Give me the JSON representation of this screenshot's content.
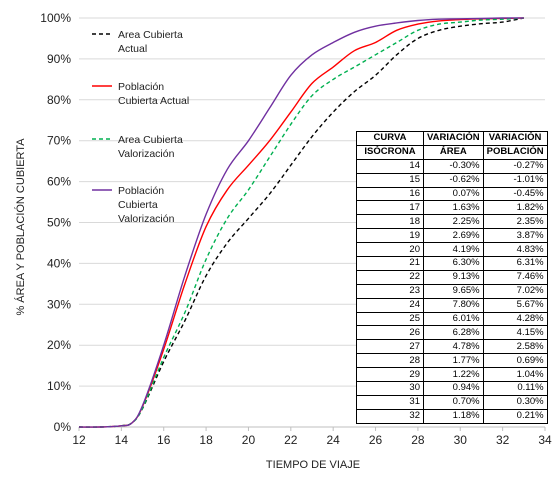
{
  "chart_data": {
    "type": "line",
    "xlabel": "TIEMPO DE VIAJE",
    "ylabel": "% ÁREA Y POBLACIÓN CUBIERTA",
    "xlim": [
      12,
      34
    ],
    "ylim": [
      0,
      100
    ],
    "x_ticks": [
      "12",
      "14",
      "16",
      "18",
      "20",
      "22",
      "24",
      "26",
      "28",
      "30",
      "32",
      "34"
    ],
    "y_ticks": [
      "0%",
      "10%",
      "20%",
      "30%",
      "40%",
      "50%",
      "60%",
      "70%",
      "80%",
      "90%",
      "100%"
    ],
    "grid": "horizontal",
    "legend_position": "top-left",
    "series": [
      {
        "name": "Area Cubierta Actual",
        "color": "#000000",
        "style": "dashed",
        "x": [
          12,
          13,
          14,
          14.5,
          15,
          16,
          17,
          18,
          19,
          20,
          21,
          22,
          23,
          24,
          25,
          26,
          27,
          28,
          29,
          30,
          31,
          32,
          33
        ],
        "y": [
          0,
          0,
          0.3,
          1,
          4.5,
          16,
          26,
          37,
          45,
          51,
          57,
          64,
          71,
          77,
          82,
          86,
          91,
          95,
          97,
          98,
          98.6,
          99,
          100
        ]
      },
      {
        "name": "Población Cubierta Actual",
        "color": "#ff0000",
        "style": "solid",
        "x": [
          12,
          13,
          14,
          14.5,
          15,
          16,
          17,
          18,
          19,
          20,
          21,
          22,
          23,
          24,
          25,
          26,
          27,
          28,
          29,
          30,
          31,
          32,
          33
        ],
        "y": [
          0,
          0,
          0.3,
          1,
          5,
          19,
          35,
          49,
          58,
          64,
          70,
          77,
          84,
          88,
          92,
          94,
          97,
          98.5,
          99.3,
          99.6,
          99.8,
          99.9,
          100
        ]
      },
      {
        "name": "Area Cubierta Valorización",
        "color": "#00b050",
        "style": "dashed",
        "x": [
          12,
          13,
          14,
          14.5,
          15,
          16,
          17,
          18,
          19,
          20,
          21,
          22,
          23,
          24,
          25,
          26,
          27,
          28,
          29,
          30,
          31,
          32,
          33
        ],
        "y": [
          0,
          0,
          0.3,
          1,
          4.6,
          17,
          28,
          41,
          51,
          58,
          66,
          74,
          81,
          85,
          88,
          91,
          94,
          97,
          98.5,
          99,
          99.5,
          99.7,
          100
        ]
      },
      {
        "name": "Población Cubierta Valorización",
        "color": "#7030a0",
        "style": "solid",
        "x": [
          12,
          13,
          14,
          14.5,
          15,
          16,
          17,
          18,
          19,
          20,
          21,
          22,
          23,
          24,
          25,
          26,
          27,
          28,
          29,
          30,
          31,
          32,
          33
        ],
        "y": [
          0,
          0,
          0.3,
          1,
          5.2,
          20,
          37,
          52,
          63,
          70,
          78,
          86,
          91,
          94,
          96.5,
          98,
          98.8,
          99.4,
          99.7,
          99.8,
          99.9,
          100,
          100
        ]
      }
    ],
    "table": {
      "headers": [
        [
          "CURVA",
          "VARIACIÓN",
          "VARIACIÓN"
        ],
        [
          "ISÓCRONA",
          "ÁREA",
          "POBLACIÓN"
        ]
      ],
      "rows": [
        [
          "14",
          "-0.30%",
          "-0.27%"
        ],
        [
          "15",
          "-0.62%",
          "-1.01%"
        ],
        [
          "16",
          "0.07%",
          "-0.45%"
        ],
        [
          "17",
          "1.63%",
          "1.82%"
        ],
        [
          "18",
          "2.25%",
          "2.35%"
        ],
        [
          "19",
          "2.69%",
          "3.87%"
        ],
        [
          "20",
          "4.19%",
          "4.83%"
        ],
        [
          "21",
          "6.30%",
          "6.31%"
        ],
        [
          "22",
          "9.13%",
          "7.46%"
        ],
        [
          "23",
          "9.65%",
          "7.02%"
        ],
        [
          "24",
          "7.80%",
          "5.67%"
        ],
        [
          "25",
          "6.01%",
          "4.28%"
        ],
        [
          "26",
          "6.28%",
          "4.15%"
        ],
        [
          "27",
          "4.78%",
          "2.58%"
        ],
        [
          "28",
          "1.77%",
          "0.69%"
        ],
        [
          "29",
          "1.22%",
          "1.04%"
        ],
        [
          "30",
          "0.94%",
          "0.11%"
        ],
        [
          "31",
          "0.70%",
          "0.30%"
        ],
        [
          "32",
          "1.18%",
          "0.21%"
        ]
      ]
    }
  },
  "legend": {
    "items": [
      {
        "line1": "Area Cubierta",
        "line2": "Actual",
        "line3": ""
      },
      {
        "line1": "Población",
        "line2": "Cubierta Actual",
        "line3": ""
      },
      {
        "line1": "Area Cubierta",
        "line2": "Valorización",
        "line3": ""
      },
      {
        "line1": "Población",
        "line2": "Cubierta",
        "line3": "Valorización"
      }
    ]
  }
}
